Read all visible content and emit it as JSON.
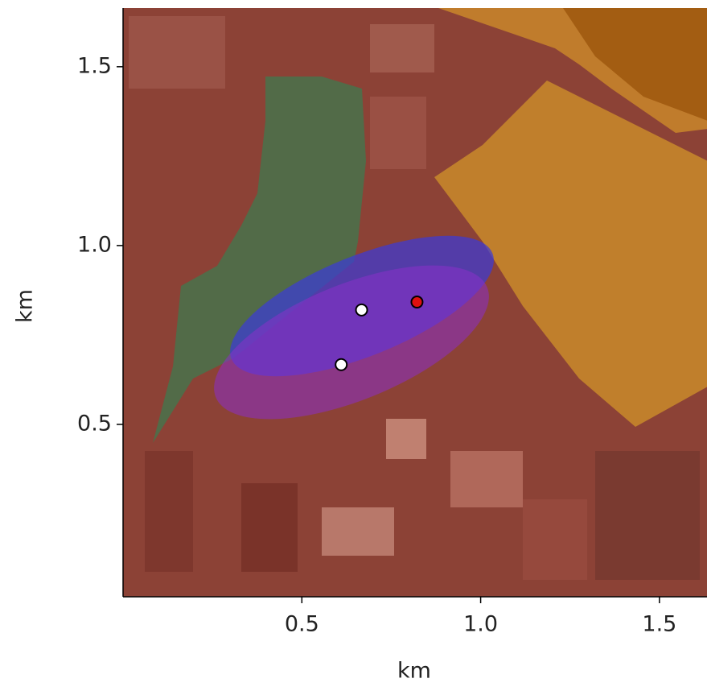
{
  "chart_data": {
    "type": "scatter",
    "xlabel": "km",
    "ylabel": "km",
    "xlim": [
      0,
      1.633
    ],
    "ylim": [
      0.018,
      1.664
    ],
    "xticks": [
      0.5,
      {
        "value": 1,
        "label": "1.0"
      },
      1.5
    ],
    "yticks": [
      0.5,
      {
        "value": 1,
        "label": "1.0"
      },
      1.5
    ],
    "series": [
      {
        "color": "#ffffff",
        "x": [
          0.667,
          0.61
        ],
        "values": [
          0.82,
          0.667
        ]
      },
      {
        "color": "#e01010",
        "x": [
          0.822
        ],
        "values": [
          0.842
        ]
      }
    ]
  }
}
